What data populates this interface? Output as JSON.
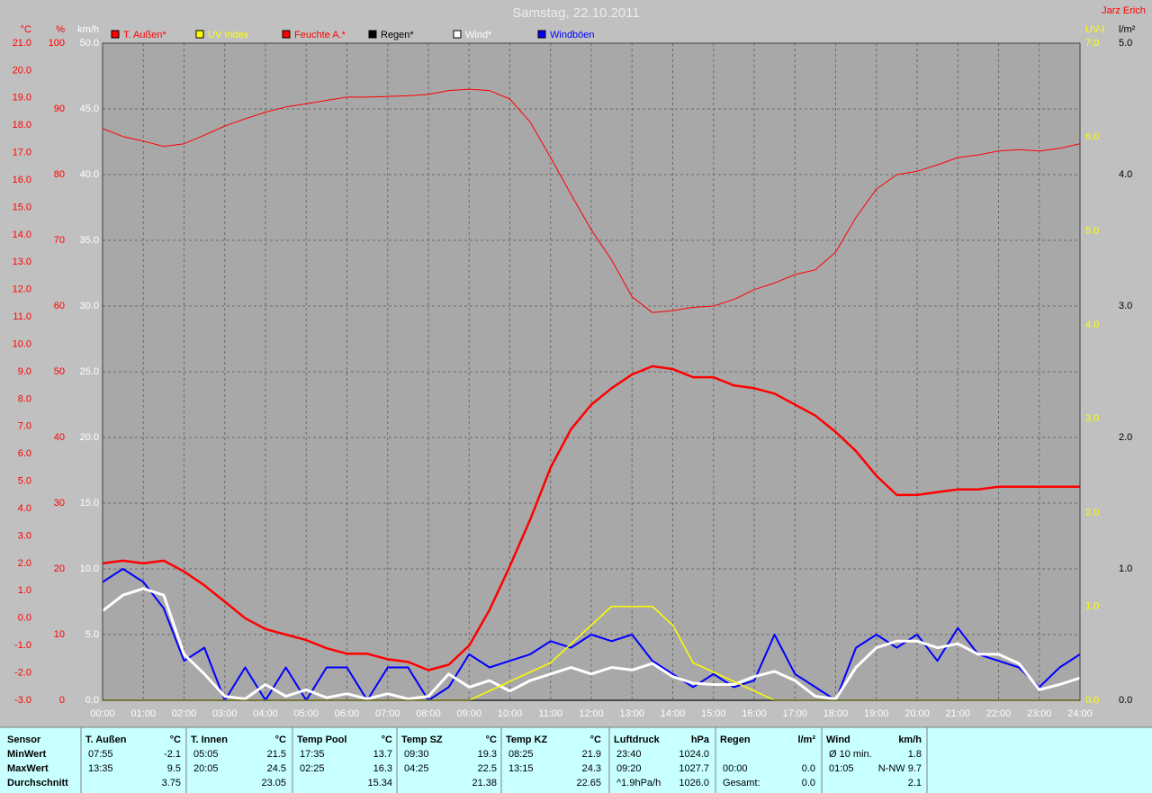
{
  "chart_data": {
    "type": "line",
    "title": "Samstag, 22.10.2011",
    "author": "Jarz Erich",
    "grid": true,
    "xlim": [
      0,
      24
    ],
    "xticks": [
      {
        "value": 0,
        "label": "00:00"
      },
      {
        "value": 1,
        "label": "01:00"
      },
      {
        "value": 2,
        "label": "02:00"
      },
      {
        "value": 3,
        "label": "03:00"
      },
      {
        "value": 4,
        "label": "04:00"
      },
      {
        "value": 5,
        "label": "05:00"
      },
      {
        "value": 6,
        "label": "06:00"
      },
      {
        "value": 7,
        "label": "07:00"
      },
      {
        "value": 8,
        "label": "08:00"
      },
      {
        "value": 9,
        "label": "09:00"
      },
      {
        "value": 10,
        "label": "10:00"
      },
      {
        "value": 11,
        "label": "11:00"
      },
      {
        "value": 12,
        "label": "12:00"
      },
      {
        "value": 13,
        "label": "13:00"
      },
      {
        "value": 14,
        "label": "14:00"
      },
      {
        "value": 15,
        "label": "15:00"
      },
      {
        "value": 16,
        "label": "16:00"
      },
      {
        "value": 17,
        "label": "17:00"
      },
      {
        "value": 18,
        "label": "18:00"
      },
      {
        "value": 19,
        "label": "19:00"
      },
      {
        "value": 20,
        "label": "20:00"
      },
      {
        "value": 21,
        "label": "21:00"
      },
      {
        "value": 22,
        "label": "22:00"
      },
      {
        "value": 23,
        "label": "23:00"
      },
      {
        "value": 24,
        "label": "24:00"
      }
    ],
    "axes": [
      {
        "unit": "°C",
        "color": "#ff0000",
        "side": "left",
        "lim": [
          -3,
          21
        ],
        "ticks": [
          {
            "value": -3,
            "label": "-3.0"
          },
          {
            "value": -2,
            "label": "-2.0"
          },
          {
            "value": -1,
            "label": "-1.0"
          },
          {
            "value": 0,
            "label": "0.0"
          },
          {
            "value": 1,
            "label": "1.0"
          },
          {
            "value": 2,
            "label": "2.0"
          },
          {
            "value": 3,
            "label": "3.0"
          },
          {
            "value": 4,
            "label": "4.0"
          },
          {
            "value": 5,
            "label": "5.0"
          },
          {
            "value": 6,
            "label": "6.0"
          },
          {
            "value": 7,
            "label": "7.0"
          },
          {
            "value": 8,
            "label": "8.0"
          },
          {
            "value": 9,
            "label": "9.0"
          },
          {
            "value": 10,
            "label": "10.0"
          },
          {
            "value": 11,
            "label": "11.0"
          },
          {
            "value": 12,
            "label": "12.0"
          },
          {
            "value": 13,
            "label": "13.0"
          },
          {
            "value": 14,
            "label": "14.0"
          },
          {
            "value": 15,
            "label": "15.0"
          },
          {
            "value": 16,
            "label": "16.0"
          },
          {
            "value": 17,
            "label": "17.0"
          },
          {
            "value": 18,
            "label": "18.0"
          },
          {
            "value": 19,
            "label": "19.0"
          },
          {
            "value": 20,
            "label": "20.0"
          },
          {
            "value": 21,
            "label": "21.0"
          }
        ]
      },
      {
        "unit": "%",
        "color": "#ff0000",
        "side": "left",
        "lim": [
          0,
          100
        ],
        "ticks": [
          0,
          10,
          20,
          30,
          40,
          50,
          60,
          70,
          80,
          90,
          100
        ],
        "grid": true
      },
      {
        "unit": "km/h",
        "color": "#ffffff",
        "side": "left",
        "lim": [
          0,
          50
        ],
        "ticks": [
          {
            "value": 0,
            "label": "0.0"
          },
          {
            "value": 5,
            "label": "5.0"
          },
          {
            "value": 10,
            "label": "10.0"
          },
          {
            "value": 15,
            "label": "15.0"
          },
          {
            "value": 20,
            "label": "20.0"
          },
          {
            "value": 25,
            "label": "25.0"
          },
          {
            "value": 30,
            "label": "30.0"
          },
          {
            "value": 35,
            "label": "35.0"
          },
          {
            "value": 40,
            "label": "40.0"
          },
          {
            "value": 45,
            "label": "45.0"
          },
          {
            "value": 50,
            "label": "50.0"
          }
        ]
      },
      {
        "unit": "UV-I",
        "color": "#ffff00",
        "side": "right",
        "lim": [
          0,
          7
        ],
        "ticks": [
          {
            "value": 0,
            "label": "0.0"
          },
          {
            "value": 1,
            "label": "1.0"
          },
          {
            "value": 2,
            "label": "2.0"
          },
          {
            "value": 3,
            "label": "3.0"
          },
          {
            "value": 4,
            "label": "4.0"
          },
          {
            "value": 5,
            "label": "5.0"
          },
          {
            "value": 6,
            "label": "6.0"
          },
          {
            "value": 7,
            "label": "7.0"
          }
        ]
      },
      {
        "unit": "l/m²",
        "color": "#000000",
        "side": "right",
        "lim": [
          0,
          5
        ],
        "ticks": [
          {
            "value": 0,
            "label": "0.0"
          },
          {
            "value": 1,
            "label": "1.0"
          },
          {
            "value": 2,
            "label": "2.0"
          },
          {
            "value": 3,
            "label": "3.0"
          },
          {
            "value": 4,
            "label": "4.0"
          },
          {
            "value": 5,
            "label": "5.0"
          }
        ]
      }
    ],
    "x": [
      0,
      0.5,
      1,
      1.5,
      2,
      2.5,
      3,
      3.5,
      4,
      4.5,
      5,
      5.5,
      6,
      6.5,
      7,
      7.5,
      8,
      8.5,
      9,
      9.5,
      10,
      10.5,
      11,
      11.5,
      12,
      12.5,
      13,
      13.5,
      14,
      14.5,
      15,
      15.5,
      16,
      16.5,
      17,
      17.5,
      18,
      18.5,
      19,
      19.5,
      20,
      20.5,
      21,
      21.5,
      22,
      22.5,
      23,
      23.5,
      24
    ],
    "series": [
      {
        "name": "T. Außen*",
        "color": "#ff0000",
        "axis": 0,
        "line_width": 2.5,
        "values": [
          2.0,
          2.1,
          2.0,
          2.1,
          1.7,
          1.2,
          0.6,
          0.0,
          -0.4,
          -0.6,
          -0.8,
          -1.1,
          -1.3,
          -1.3,
          -1.5,
          -1.6,
          -1.9,
          -1.7,
          -1.0,
          0.3,
          1.9,
          3.6,
          5.5,
          6.9,
          7.8,
          8.4,
          8.9,
          9.2,
          9.1,
          8.8,
          8.8,
          8.5,
          8.4,
          8.2,
          7.8,
          7.4,
          6.8,
          6.1,
          5.2,
          4.5,
          4.5,
          4.6,
          4.7,
          4.7,
          4.8,
          4.8,
          4.8,
          4.8,
          4.8
        ]
      },
      {
        "name": "UV Index",
        "color": "#ffff00",
        "axis": 3,
        "line_width": 1.5,
        "values": [
          0,
          0,
          0,
          0,
          0,
          0,
          0,
          0,
          0,
          0,
          0,
          0,
          0,
          0,
          0,
          0,
          0,
          0,
          0,
          0.1,
          0.2,
          0.3,
          0.4,
          0.6,
          0.8,
          1.0,
          1.0,
          1.0,
          0.8,
          0.4,
          0.3,
          0.2,
          0.1,
          0,
          0,
          0,
          0,
          0,
          0,
          0,
          0,
          0,
          0,
          0,
          0,
          0,
          0,
          0,
          0
        ]
      },
      {
        "name": "Feuchte A.*",
        "color": "#ff0000",
        "axis": 1,
        "line_width": 1,
        "values": [
          87.0,
          85.8,
          85.1,
          84.3,
          84.7,
          86.0,
          87.4,
          88.5,
          89.5,
          90.3,
          90.8,
          91.3,
          91.8,
          91.8,
          91.9,
          92.0,
          92.2,
          92.8,
          93.0,
          92.8,
          91.5,
          88.0,
          82.6,
          77.0,
          71.6,
          67.0,
          61.4,
          59.0,
          59.3,
          59.8,
          60.0,
          61.0,
          62.5,
          63.5,
          64.8,
          65.5,
          68.2,
          73.5,
          77.8,
          80.0,
          80.5,
          81.5,
          82.6,
          83.0,
          83.6,
          83.8,
          83.6,
          84.0,
          84.7
        ]
      },
      {
        "name": "Regen*",
        "color": "#000000",
        "axis": 4,
        "line_width": 1.5,
        "values": [
          0,
          0,
          0,
          0,
          0,
          0,
          0,
          0,
          0,
          0,
          0,
          0,
          0,
          0,
          0,
          0,
          0,
          0,
          0,
          0,
          0,
          0,
          0,
          0,
          0,
          0,
          0,
          0,
          0,
          0,
          0,
          0,
          0,
          0,
          0,
          0,
          0,
          0,
          0,
          0,
          0,
          0,
          0,
          0,
          0,
          0,
          0,
          0,
          0
        ]
      },
      {
        "name": "Wind*",
        "color": "#ffffff",
        "axis": 2,
        "line_width": 3,
        "values": [
          6.8,
          8.0,
          8.5,
          8.0,
          3.5,
          2.0,
          0.3,
          0.1,
          1.2,
          0.3,
          0.8,
          0.2,
          0.5,
          0.1,
          0.5,
          0.1,
          0.3,
          2.0,
          1.0,
          1.5,
          0.7,
          1.5,
          2.0,
          2.5,
          2.0,
          2.5,
          2.3,
          2.8,
          1.8,
          1.3,
          1.2,
          1.2,
          1.8,
          2.2,
          1.5,
          0.3,
          0.1,
          2.5,
          4.0,
          4.5,
          4.5,
          4.0,
          4.3,
          3.5,
          3.5,
          2.8,
          0.8,
          1.2,
          1.7
        ]
      },
      {
        "name": "Windböen",
        "color": "#0000ff",
        "axis": 2,
        "line_width": 2,
        "values": [
          9,
          10,
          9,
          7,
          3,
          4,
          0,
          2.5,
          0,
          2.5,
          0,
          2.5,
          2.5,
          0,
          2.5,
          2.5,
          0,
          1,
          3.5,
          2.5,
          3,
          3.5,
          4.5,
          4,
          5,
          4.5,
          5,
          3,
          2,
          1,
          2,
          1,
          1.5,
          5,
          2,
          1,
          0,
          4,
          5,
          4,
          5,
          3,
          5.5,
          3.5,
          3,
          2.5,
          1,
          2.5,
          3.5
        ]
      }
    ]
  },
  "summary": {
    "row_labels": [
      "Sensor",
      "MinWert",
      "MaxWert",
      "Durchschnitt"
    ],
    "groups": [
      {
        "name": "T. Außen",
        "unit": "°C",
        "rows": [
          [
            "07:55",
            "-2.1"
          ],
          [
            "13:35",
            "9.5"
          ],
          [
            null,
            "3.75"
          ]
        ]
      },
      {
        "name": "T. Innen",
        "unit": "°C",
        "rows": [
          [
            "05:05",
            "21.5"
          ],
          [
            "20:05",
            "24.5"
          ],
          [
            null,
            "23.05"
          ]
        ]
      },
      {
        "name": "Temp Pool",
        "unit": "°C",
        "rows": [
          [
            "17:35",
            "13.7"
          ],
          [
            "02:25",
            "16.3"
          ],
          [
            null,
            "15.34"
          ]
        ]
      },
      {
        "name": "Temp SZ",
        "unit": "°C",
        "rows": [
          [
            "09:30",
            "19.3"
          ],
          [
            "04:25",
            "22.5"
          ],
          [
            null,
            "21.38"
          ]
        ]
      },
      {
        "name": "Temp KZ",
        "unit": "°C",
        "rows": [
          [
            "08:25",
            "21.9"
          ],
          [
            "13:15",
            "24.3"
          ],
          [
            null,
            "22.65"
          ]
        ]
      },
      {
        "name": "Luftdruck",
        "unit": "hPa",
        "rows": [
          [
            "23:40",
            "1024.0"
          ],
          [
            "09:20",
            "1027.7"
          ],
          [
            "^1.9hPa/h",
            "1026.0"
          ]
        ]
      },
      {
        "name": "Regen",
        "unit": "l/m²",
        "rows": [
          [
            null,
            null
          ],
          [
            "00:00",
            "0.0"
          ],
          [
            "Gesamt:",
            "0.0"
          ]
        ]
      },
      {
        "name": "Wind",
        "unit": "km/h",
        "rows": [
          [
            "Ø 10 min.",
            "1.8"
          ],
          [
            "01:05",
            "N-NW 9.7"
          ],
          [
            null,
            "2.1"
          ]
        ]
      }
    ]
  }
}
